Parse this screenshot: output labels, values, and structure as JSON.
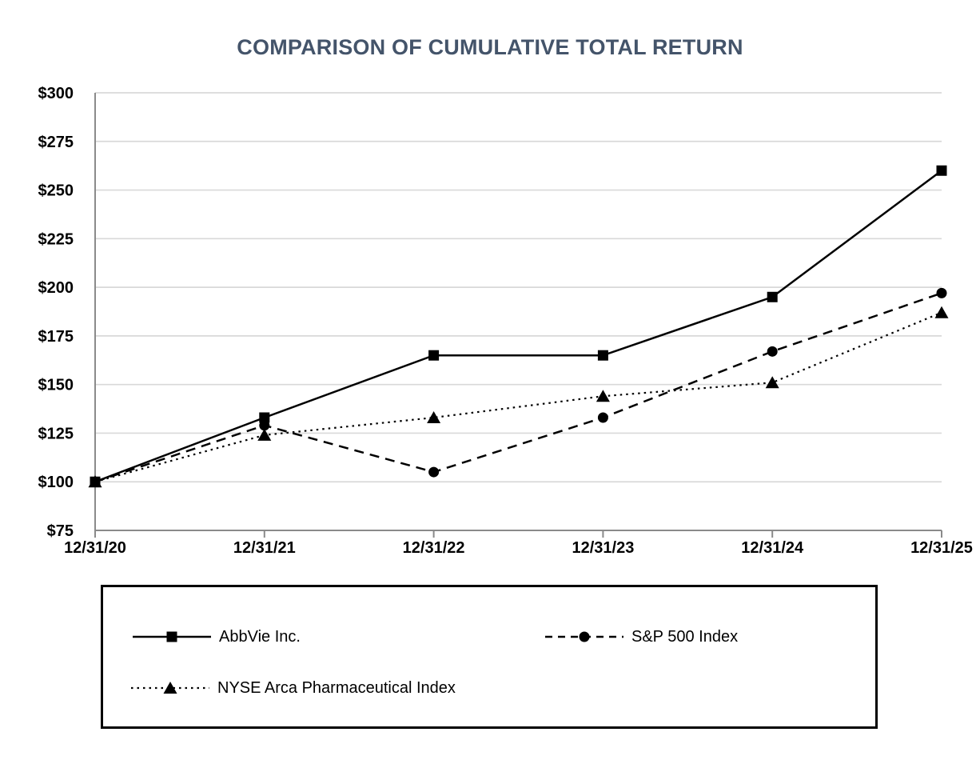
{
  "page": {
    "background": "#ffffff"
  },
  "chart_data": {
    "type": "line",
    "title": "COMPARISON OF CUMULATIVE TOTAL RETURN",
    "title_color": "#44546A",
    "categories": [
      "12/31/20",
      "12/31/21",
      "12/31/22",
      "12/31/23",
      "12/31/24",
      "12/31/25"
    ],
    "series": [
      {
        "name": "AbbVie Inc.",
        "values": [
          100,
          133,
          165,
          165,
          195,
          260
        ],
        "line": "solid",
        "marker": "square",
        "color": "#000000"
      },
      {
        "name": "S&P 500 Index",
        "values": [
          100,
          129,
          105,
          133,
          167,
          197
        ],
        "line": "dashed",
        "marker": "circle",
        "color": "#000000"
      },
      {
        "name": "NYSE Arca Pharmaceutical Index",
        "values": [
          100,
          124,
          133,
          144,
          151,
          187
        ],
        "line": "dotted",
        "marker": "triangle",
        "color": "#000000"
      }
    ],
    "xlabel": "",
    "ylabel": "",
    "ylim": [
      75,
      300
    ],
    "ytick_step": 25,
    "ytick_prefix": "$",
    "ytick_labels": [
      "$75",
      "$100",
      "$125",
      "$150",
      "$175",
      "$200",
      "$225",
      "$250",
      "$275",
      "$300"
    ],
    "grid": true,
    "legend_position": "bottom-box",
    "axis_color": "#8a8a8a",
    "grid_color": "#d9d9d9",
    "text_color": "#000000"
  }
}
